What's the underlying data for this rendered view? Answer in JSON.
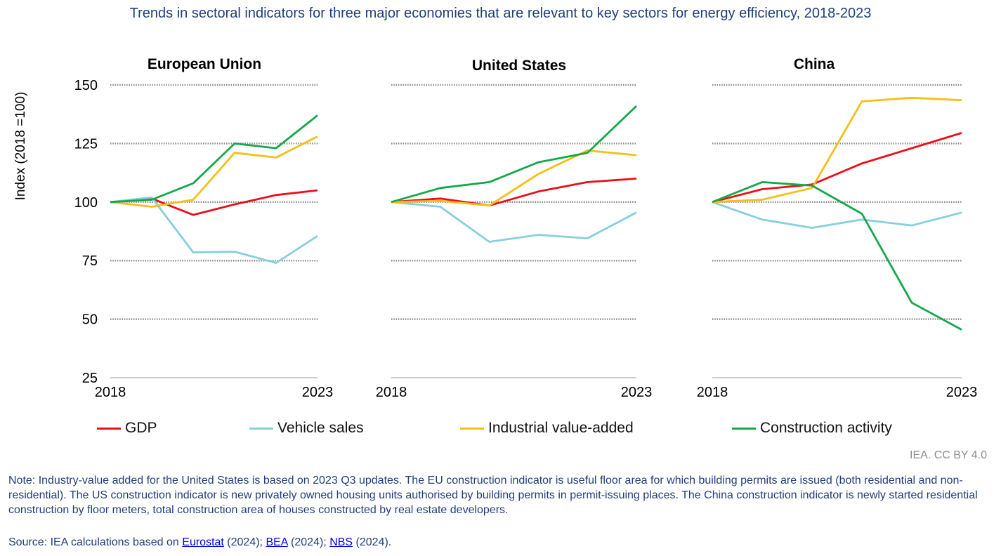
{
  "title": "Trends in sectoral indicators for three major economies that are relevant to key sectors for energy efficiency, 2018-2023",
  "y_axis_label": "Index (2018 =100)",
  "credit": "IEA. CC BY 4.0",
  "note": "Note: Industry-value added for the United States is based on 2023 Q3 updates. The EU construction indicator is useful floor area for which building permits are issued (both residential and non-residential). The US construction indicator is new privately owned housing units authorised by building permits in permit-issuing places. The China construction indicator is newly started residential construction by floor meters, total construction area of houses constructed by real estate developers.",
  "source": {
    "prefix": "Source: IEA calculations based on ",
    "links": [
      {
        "label": "Eurostat",
        "suffix": " (2024); "
      },
      {
        "label": "BEA",
        "suffix": " (2024); "
      },
      {
        "label": "NBS",
        "suffix": " (2024)."
      }
    ]
  },
  "colors": {
    "GDP": "#e8101a",
    "Vehicle sales": "#86cfdc",
    "Industrial value-added": "#f5bf17",
    "Construction activity": "#14a84a"
  },
  "legend": [
    "GDP",
    "Vehicle sales",
    "Industrial value-added",
    "Construction activity"
  ],
  "chart_data": [
    {
      "type": "line",
      "title": "European Union",
      "x": [
        2018,
        2019,
        2020,
        2021,
        2022,
        2023
      ],
      "x_tick_labels": [
        "2018",
        "2023"
      ],
      "ylim": [
        25,
        150
      ],
      "y_ticks": [
        "25",
        "50",
        "75",
        "100",
        "125",
        "150"
      ],
      "series": [
        {
          "name": "GDP",
          "values": [
            100,
            101.5,
            94.5,
            99,
            103,
            105
          ]
        },
        {
          "name": "Vehicle sales",
          "values": [
            100,
            102,
            78.5,
            78.8,
            74,
            85.5
          ]
        },
        {
          "name": "Industrial value-added",
          "values": [
            100,
            98,
            101,
            121,
            119,
            128
          ]
        },
        {
          "name": "Construction activity",
          "values": [
            100,
            101,
            108,
            125,
            123,
            137
          ]
        }
      ]
    },
    {
      "type": "line",
      "title": "United States",
      "x": [
        2018,
        2019,
        2020,
        2021,
        2022,
        2023
      ],
      "x_tick_labels": [
        "2018",
        "2023"
      ],
      "ylim": [
        25,
        150
      ],
      "series": [
        {
          "name": "GDP",
          "values": [
            100,
            101.5,
            98.5,
            104.5,
            108.5,
            110
          ]
        },
        {
          "name": "Vehicle sales",
          "values": [
            100,
            98,
            83,
            86,
            84.5,
            95.5
          ]
        },
        {
          "name": "Industrial value-added",
          "values": [
            100,
            100.5,
            98.5,
            112,
            122,
            120
          ]
        },
        {
          "name": "Construction activity",
          "values": [
            100,
            106,
            108.5,
            117,
            121,
            141
          ]
        }
      ]
    },
    {
      "type": "line",
      "title": "China",
      "x": [
        2018,
        2019,
        2020,
        2021,
        2022,
        2023
      ],
      "x_tick_labels": [
        "2018",
        "2023"
      ],
      "ylim": [
        25,
        150
      ],
      "series": [
        {
          "name": "GDP",
          "values": [
            100,
            105.5,
            107.5,
            116.5,
            123,
            129.5
          ]
        },
        {
          "name": "Vehicle sales",
          "values": [
            100,
            92.5,
            89,
            92.5,
            90,
            95.5
          ]
        },
        {
          "name": "Industrial value-added",
          "values": [
            100,
            101,
            106,
            143,
            144.5,
            143.5
          ]
        },
        {
          "name": "Construction activity",
          "values": [
            100,
            108.5,
            107,
            95,
            57,
            45.5
          ]
        }
      ]
    }
  ]
}
